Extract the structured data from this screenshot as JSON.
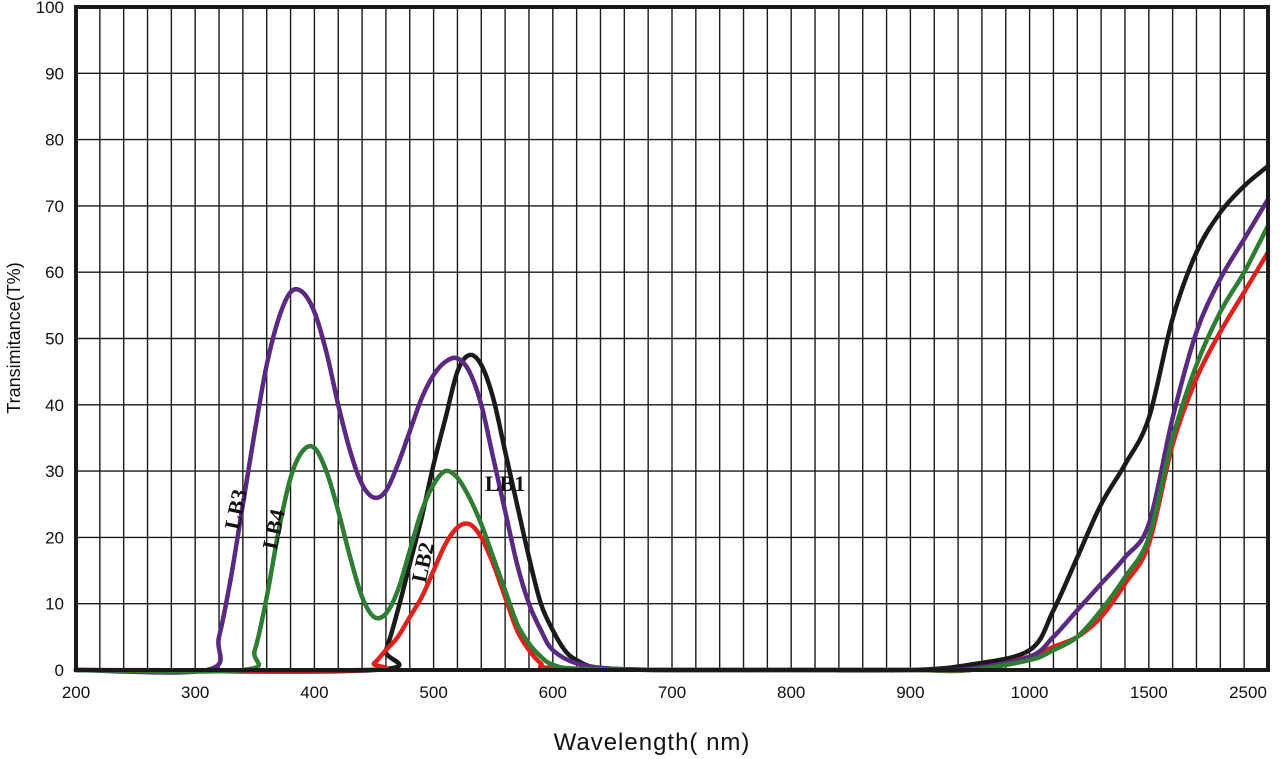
{
  "chart_data": {
    "type": "line",
    "xlabel": "Wavelength( nm)",
    "ylabel": "Transimitance(T%)",
    "x_ticks": [
      "200",
      "300",
      "400",
      "500",
      "600",
      "700",
      "800",
      "900",
      "1000",
      "1500",
      "2500"
    ],
    "y_ticks": [
      0,
      10,
      20,
      30,
      40,
      50,
      60,
      70,
      80,
      90,
      100
    ],
    "ylim": [
      0,
      100
    ],
    "grid": true,
    "x_scale": "piecewise: labeled ticks equally spaced",
    "series": [
      {
        "name": "LB1",
        "color": "#1a1a1a",
        "points": [
          [
            200,
            0
          ],
          [
            450,
            0
          ],
          [
            460,
            3
          ],
          [
            470,
            9
          ],
          [
            480,
            16
          ],
          [
            490,
            23
          ],
          [
            500,
            31
          ],
          [
            510,
            38
          ],
          [
            520,
            45
          ],
          [
            530,
            47.5
          ],
          [
            540,
            46
          ],
          [
            550,
            41
          ],
          [
            560,
            33
          ],
          [
            570,
            25
          ],
          [
            580,
            17
          ],
          [
            590,
            10
          ],
          [
            600,
            6
          ],
          [
            610,
            3
          ],
          [
            620,
            1.5
          ],
          [
            640,
            0.3
          ],
          [
            700,
            0
          ],
          [
            800,
            0
          ],
          [
            900,
            0
          ],
          [
            950,
            0.8
          ],
          [
            1000,
            3
          ],
          [
            1100,
            9
          ],
          [
            1200,
            17
          ],
          [
            1300,
            25
          ],
          [
            1400,
            31
          ],
          [
            1500,
            38
          ],
          [
            1700,
            53
          ],
          [
            1900,
            63
          ],
          [
            2100,
            69
          ],
          [
            2300,
            73
          ],
          [
            2500,
            76
          ]
        ]
      },
      {
        "name": "LB2",
        "color": "#e0201c",
        "points": [
          [
            200,
            0
          ],
          [
            440,
            0
          ],
          [
            450,
            1
          ],
          [
            460,
            3
          ],
          [
            470,
            5
          ],
          [
            480,
            8
          ],
          [
            490,
            11
          ],
          [
            500,
            15
          ],
          [
            510,
            19
          ],
          [
            520,
            21.5
          ],
          [
            530,
            22
          ],
          [
            540,
            20
          ],
          [
            550,
            16
          ],
          [
            560,
            11
          ],
          [
            570,
            6
          ],
          [
            580,
            3
          ],
          [
            590,
            1
          ],
          [
            600,
            0.3
          ],
          [
            700,
            0
          ],
          [
            800,
            0
          ],
          [
            900,
            0
          ],
          [
            950,
            0
          ],
          [
            1000,
            2
          ],
          [
            1100,
            3.5
          ],
          [
            1200,
            5
          ],
          [
            1300,
            8
          ],
          [
            1400,
            13
          ],
          [
            1500,
            19
          ],
          [
            1700,
            34
          ],
          [
            1900,
            44
          ],
          [
            2100,
            51
          ],
          [
            2300,
            57
          ],
          [
            2500,
            63
          ]
        ]
      },
      {
        "name": "LB3",
        "color": "#5a2a82",
        "points": [
          [
            200,
            0
          ],
          [
            310,
            0
          ],
          [
            320,
            5
          ],
          [
            330,
            14
          ],
          [
            340,
            25
          ],
          [
            350,
            36
          ],
          [
            360,
            46
          ],
          [
            370,
            53
          ],
          [
            380,
            57
          ],
          [
            390,
            57
          ],
          [
            400,
            54
          ],
          [
            410,
            48
          ],
          [
            420,
            40
          ],
          [
            430,
            33
          ],
          [
            440,
            28
          ],
          [
            450,
            26
          ],
          [
            460,
            27
          ],
          [
            470,
            31
          ],
          [
            480,
            36
          ],
          [
            490,
            41
          ],
          [
            500,
            44.5
          ],
          [
            510,
            46.5
          ],
          [
            520,
            47
          ],
          [
            530,
            45
          ],
          [
            540,
            40
          ],
          [
            550,
            32
          ],
          [
            560,
            24
          ],
          [
            570,
            16
          ],
          [
            580,
            10
          ],
          [
            590,
            6
          ],
          [
            600,
            3
          ],
          [
            620,
            1
          ],
          [
            650,
            0.2
          ],
          [
            700,
            0
          ],
          [
            800,
            0
          ],
          [
            900,
            0
          ],
          [
            950,
            0.2
          ],
          [
            1000,
            2
          ],
          [
            1100,
            5
          ],
          [
            1200,
            9
          ],
          [
            1300,
            13
          ],
          [
            1400,
            17
          ],
          [
            1500,
            22
          ],
          [
            1700,
            38
          ],
          [
            1900,
            51
          ],
          [
            2100,
            59
          ],
          [
            2300,
            65
          ],
          [
            2500,
            71
          ]
        ]
      },
      {
        "name": "LB4",
        "color": "#2e7d32",
        "points": [
          [
            200,
            0
          ],
          [
            340,
            0
          ],
          [
            350,
            3
          ],
          [
            360,
            11
          ],
          [
            370,
            21
          ],
          [
            380,
            29
          ],
          [
            390,
            33
          ],
          [
            400,
            33.5
          ],
          [
            410,
            30
          ],
          [
            420,
            24
          ],
          [
            430,
            17
          ],
          [
            440,
            11
          ],
          [
            450,
            8
          ],
          [
            460,
            8.5
          ],
          [
            470,
            12
          ],
          [
            480,
            18
          ],
          [
            490,
            24
          ],
          [
            500,
            28
          ],
          [
            510,
            30
          ],
          [
            520,
            29
          ],
          [
            530,
            26
          ],
          [
            540,
            22
          ],
          [
            550,
            17
          ],
          [
            560,
            12
          ],
          [
            570,
            7
          ],
          [
            580,
            4
          ],
          [
            590,
            2
          ],
          [
            600,
            0.8
          ],
          [
            620,
            0.2
          ],
          [
            700,
            0
          ],
          [
            800,
            0
          ],
          [
            900,
            0
          ],
          [
            950,
            0
          ],
          [
            1000,
            1.5
          ],
          [
            1100,
            3
          ],
          [
            1200,
            5
          ],
          [
            1300,
            9
          ],
          [
            1400,
            14
          ],
          [
            1500,
            20
          ],
          [
            1700,
            35
          ],
          [
            1900,
            46
          ],
          [
            2100,
            54
          ],
          [
            2300,
            60
          ],
          [
            2500,
            67
          ]
        ]
      }
    ],
    "annotations": [
      {
        "text": "LB1",
        "series": "LB1"
      },
      {
        "text": "LB2",
        "series": "LB2"
      },
      {
        "text": "LB3",
        "series": "LB3"
      },
      {
        "text": "LB4",
        "series": "LB4"
      }
    ]
  }
}
